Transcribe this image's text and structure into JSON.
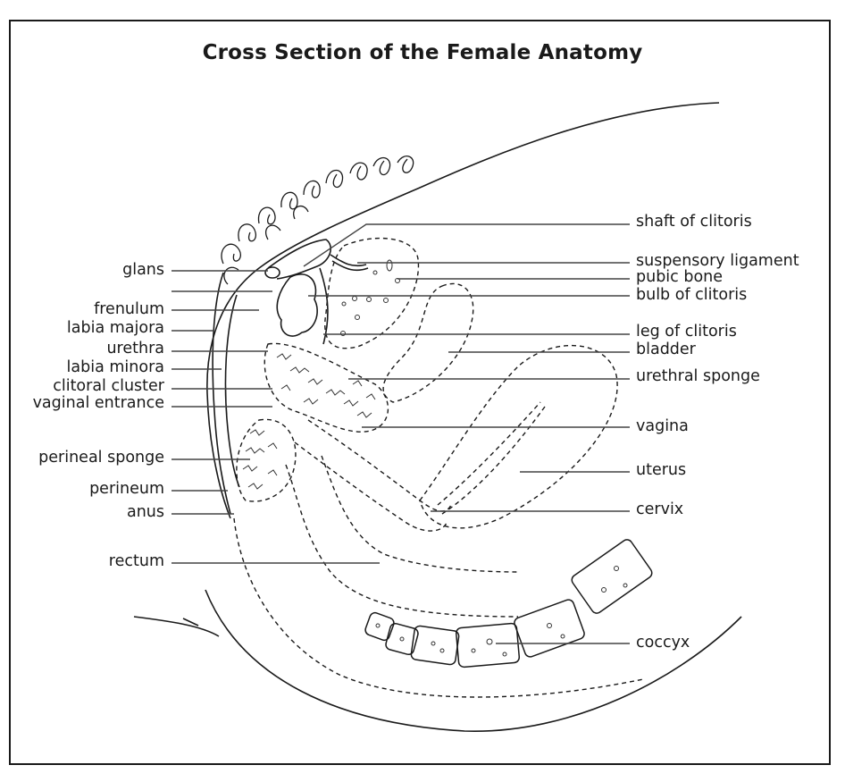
{
  "title": "Cross Section of the Female Anatomy",
  "labels": {
    "left": {
      "glans": "glans",
      "frenulum": "frenulum",
      "labia_majora": "labia majora",
      "urethra": "urethra",
      "labia_minora": "labia minora",
      "clitoral_cluster": "clitoral cluster",
      "vaginal_entrance": "vaginal entrance",
      "perineal_sponge": "perineal sponge",
      "perineum": "perineum",
      "anus": "anus",
      "rectum": "rectum"
    },
    "right": {
      "shaft_of_clitoris": "shaft of clitoris",
      "suspensory_ligament": "suspensory ligament",
      "pubic_bone": "pubic bone",
      "bulb_of_clitoris": "bulb of clitoris",
      "leg_of_clitoris": "leg of clitoris",
      "bladder": "bladder",
      "urethral_sponge": "urethral sponge",
      "vagina": "vagina",
      "uterus": "uterus",
      "cervix": "cervix",
      "coccyx": "coccyx"
    }
  }
}
